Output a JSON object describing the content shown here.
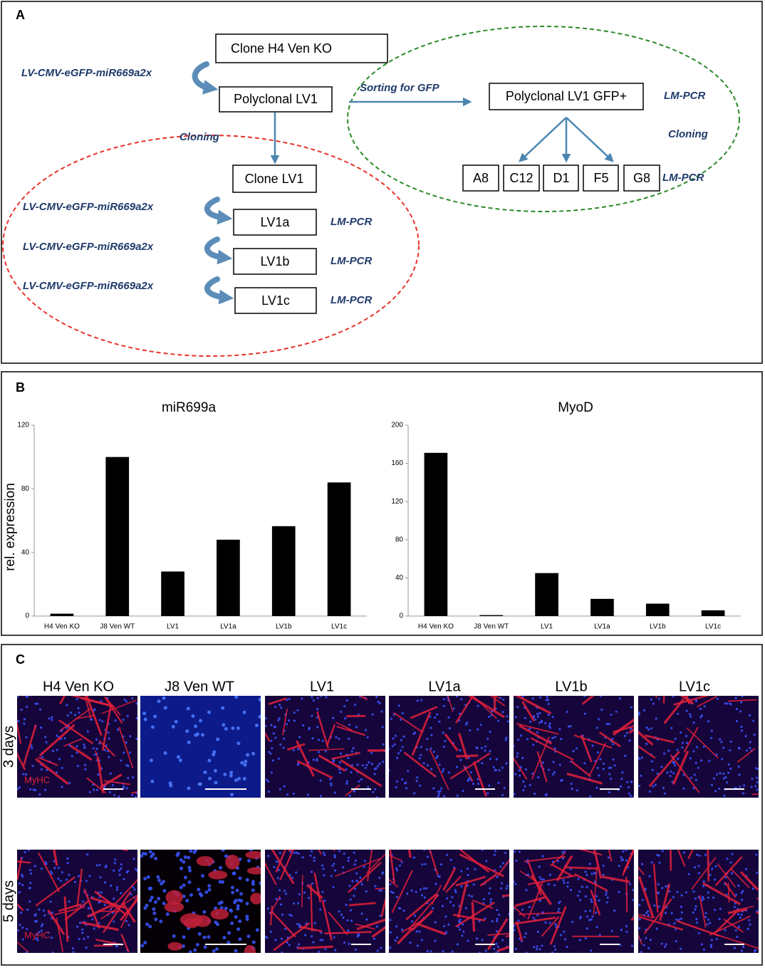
{
  "panel_labels": [
    "A",
    "B",
    "C"
  ],
  "diagram": {
    "nodes": [
      "Clone H4 Ven KO",
      "Polyclonal LV1",
      "Clone LV1",
      "LV1a",
      "LV1b",
      "LV1c",
      "Polyclonal LV1 GFP+",
      "A8",
      "C12",
      "D1",
      "F5",
      "G8"
    ],
    "vector": "LV-CMV-eGFP-miR669a2x",
    "sorting": "Sorting for GFP",
    "cloning": "Cloning",
    "lm_pcr": "LM-PCR"
  },
  "chart_data": [
    {
      "type": "bar",
      "title": "miR699a",
      "ylabel": "rel. expression",
      "categories": [
        "H4 Ven KO",
        "J8 Ven WT",
        "LV1",
        "LV1a",
        "LV1b",
        "LV1c"
      ],
      "values": [
        1.5,
        100,
        28,
        48,
        56.5,
        84
      ],
      "color": "#000000",
      "ylim": [
        0,
        120
      ],
      "yticks": [
        0,
        40,
        80,
        120
      ]
    },
    {
      "type": "bar",
      "title": "MyoD",
      "categories": [
        "H4 Ven KO",
        "J8 Ven WT",
        "LV1",
        "LV1a",
        "LV1b",
        "LV1c"
      ],
      "values": [
        171,
        1,
        45,
        18,
        13,
        6
      ],
      "color": "#000000",
      "ylim": [
        0,
        200
      ],
      "yticks": [
        0,
        40,
        80,
        120,
        160,
        200
      ]
    }
  ],
  "micrographs": {
    "columns": [
      "H4 Ven KO",
      "J8 Ven WT",
      "LV1",
      "LV1a",
      "LV1b",
      "LV1c"
    ],
    "rows": [
      "3 days",
      "5 days"
    ],
    "stain": "MyHC"
  }
}
